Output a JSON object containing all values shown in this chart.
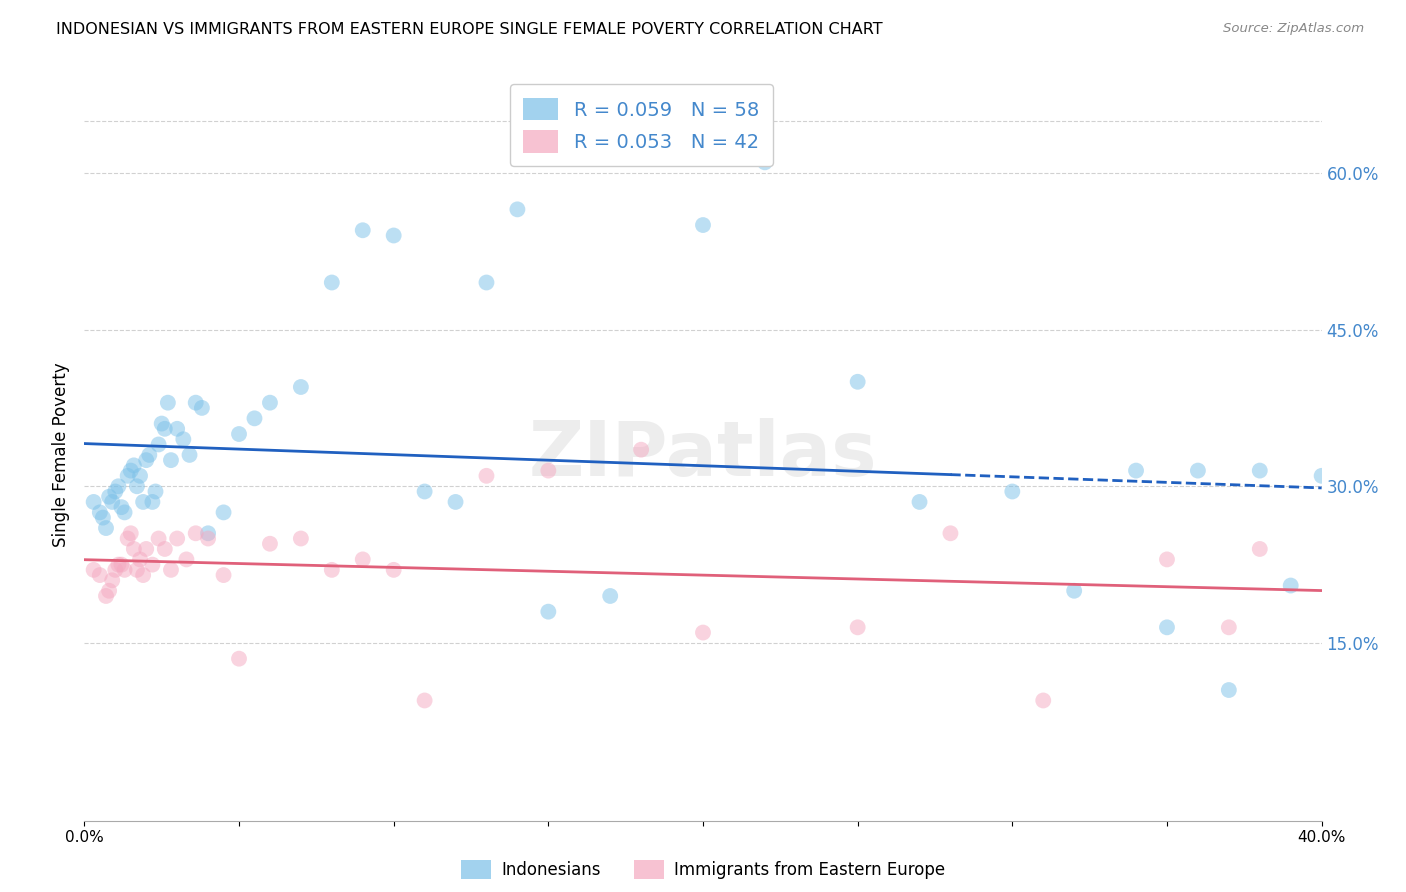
{
  "title": "INDONESIAN VS IMMIGRANTS FROM EASTERN EUROPE SINGLE FEMALE POVERTY CORRELATION CHART",
  "source": "Source: ZipAtlas.com",
  "ylabel": "Single Female Poverty",
  "xlim": [
    0.0,
    0.4
  ],
  "ylim": [
    -0.02,
    0.68
  ],
  "y_ticks_right_vals": [
    0.15,
    0.3,
    0.45,
    0.6
  ],
  "y_ticks_right_labels": [
    "15.0%",
    "30.0%",
    "45.0%",
    "60.0%"
  ],
  "legend1_label": "R = 0.059   N = 58",
  "legend2_label": "R = 0.053   N = 42",
  "legend_label1_bottom": "Indonesians",
  "legend_label2_bottom": "Immigrants from Eastern Europe",
  "blue_color": "#7bc0e8",
  "pink_color": "#f4a8c0",
  "blue_line_color": "#2060c0",
  "pink_line_color": "#e0607a",
  "blue_legend_color": "#4488cc",
  "watermark": "ZIPatlas",
  "grid_color": "#cccccc",
  "indonesian_x": [
    0.003,
    0.005,
    0.006,
    0.007,
    0.008,
    0.009,
    0.01,
    0.011,
    0.012,
    0.013,
    0.014,
    0.015,
    0.016,
    0.017,
    0.018,
    0.019,
    0.02,
    0.021,
    0.022,
    0.023,
    0.024,
    0.025,
    0.026,
    0.027,
    0.028,
    0.03,
    0.032,
    0.034,
    0.036,
    0.038,
    0.04,
    0.045,
    0.05,
    0.055,
    0.06,
    0.07,
    0.08,
    0.09,
    0.1,
    0.11,
    0.12,
    0.13,
    0.14,
    0.15,
    0.17,
    0.2,
    0.22,
    0.25,
    0.27,
    0.3,
    0.32,
    0.34,
    0.35,
    0.36,
    0.37,
    0.38,
    0.39,
    0.4
  ],
  "indonesian_y": [
    0.285,
    0.275,
    0.27,
    0.26,
    0.29,
    0.285,
    0.295,
    0.3,
    0.28,
    0.275,
    0.31,
    0.315,
    0.32,
    0.3,
    0.31,
    0.285,
    0.325,
    0.33,
    0.285,
    0.295,
    0.34,
    0.36,
    0.355,
    0.38,
    0.325,
    0.355,
    0.345,
    0.33,
    0.38,
    0.375,
    0.255,
    0.275,
    0.35,
    0.365,
    0.38,
    0.395,
    0.495,
    0.545,
    0.54,
    0.295,
    0.285,
    0.495,
    0.565,
    0.18,
    0.195,
    0.55,
    0.61,
    0.4,
    0.285,
    0.295,
    0.2,
    0.315,
    0.165,
    0.315,
    0.105,
    0.315,
    0.205,
    0.31
  ],
  "eastern_x": [
    0.003,
    0.005,
    0.007,
    0.008,
    0.009,
    0.01,
    0.011,
    0.012,
    0.013,
    0.014,
    0.015,
    0.016,
    0.017,
    0.018,
    0.019,
    0.02,
    0.022,
    0.024,
    0.026,
    0.028,
    0.03,
    0.033,
    0.036,
    0.04,
    0.045,
    0.05,
    0.06,
    0.07,
    0.08,
    0.09,
    0.1,
    0.11,
    0.13,
    0.15,
    0.18,
    0.2,
    0.25,
    0.28,
    0.31,
    0.35,
    0.37,
    0.38
  ],
  "eastern_y": [
    0.22,
    0.215,
    0.195,
    0.2,
    0.21,
    0.22,
    0.225,
    0.225,
    0.22,
    0.25,
    0.255,
    0.24,
    0.22,
    0.23,
    0.215,
    0.24,
    0.225,
    0.25,
    0.24,
    0.22,
    0.25,
    0.23,
    0.255,
    0.25,
    0.215,
    0.135,
    0.245,
    0.25,
    0.22,
    0.23,
    0.22,
    0.095,
    0.31,
    0.315,
    0.335,
    0.16,
    0.165,
    0.255,
    0.095,
    0.23,
    0.165,
    0.24
  ]
}
